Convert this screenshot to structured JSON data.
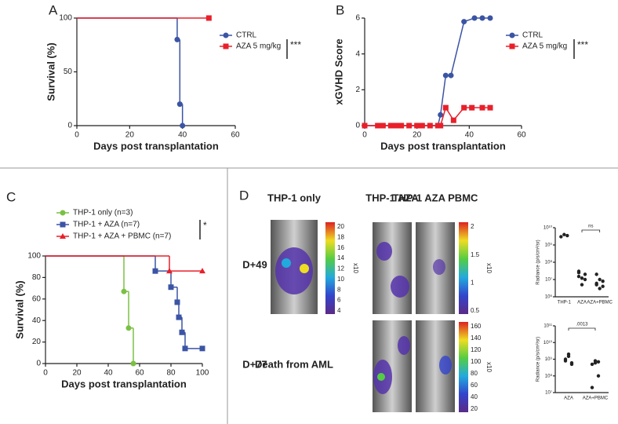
{
  "chart_data": [
    {
      "type": "step",
      "title": "A",
      "xlabel": "Days post transplantation",
      "ylabel": "Survival (%)",
      "annotation": "***",
      "xlim": [
        0,
        60
      ],
      "xticks": [
        0,
        20,
        40,
        60
      ],
      "ylim": [
        0,
        100
      ],
      "yticks": [
        0,
        50,
        100
      ],
      "legend": "right",
      "series": [
        {
          "name": "CTRL",
          "color": "#3b54a4",
          "marker": "circle",
          "x": [
            0,
            38,
            39,
            40
          ],
          "values": [
            100,
            80,
            20,
            0
          ]
        },
        {
          "name": "AZA 5 mg/kg",
          "color": "#e8202a",
          "marker": "square",
          "x": [
            0,
            50
          ],
          "values": [
            100,
            100
          ]
        }
      ]
    },
    {
      "type": "line",
      "title": "B",
      "xlabel": "Days post transplantation",
      "ylabel": "xGVHD Score",
      "annotation": "***",
      "xlim": [
        0,
        60
      ],
      "xticks": [
        0,
        20,
        40,
        60
      ],
      "ylim": [
        0,
        6
      ],
      "yticks": [
        0,
        2,
        4,
        6
      ],
      "legend": "right",
      "series": [
        {
          "name": "CTRL",
          "color": "#3b54a4",
          "marker": "circle",
          "x": [
            0,
            5,
            7,
            10,
            12,
            14,
            17,
            20,
            22,
            25,
            28,
            29,
            31,
            33,
            38,
            42,
            45,
            48
          ],
          "values": [
            0,
            0,
            0,
            0,
            0,
            0,
            0,
            0,
            0,
            0,
            0,
            0.6,
            2.8,
            2.8,
            5.8,
            6,
            6,
            6
          ]
        },
        {
          "name": "AZA 5 mg/kg",
          "color": "#e8202a",
          "marker": "square",
          "x": [
            0,
            5,
            7,
            10,
            12,
            14,
            17,
            20,
            22,
            25,
            28,
            29,
            31,
            34,
            38,
            41,
            45,
            48
          ],
          "values": [
            0,
            0,
            0,
            0,
            0,
            0,
            0,
            0,
            0,
            0,
            0,
            0,
            1,
            0.3,
            1,
            1,
            1,
            1
          ]
        }
      ]
    },
    {
      "type": "step",
      "title": "C",
      "xlabel": "Days post transplantation",
      "ylabel": "Survival (%)",
      "annotation": "*",
      "xlim": [
        0,
        100
      ],
      "xticks": [
        0,
        20,
        40,
        60,
        80,
        100
      ],
      "ylim": [
        0,
        100
      ],
      "yticks": [
        0,
        20,
        40,
        60,
        80,
        100
      ],
      "legend": "top",
      "series": [
        {
          "name": "THP-1 only (n=3)",
          "color": "#7ac143",
          "marker": "circle",
          "x": [
            0,
            50,
            53,
            56
          ],
          "values": [
            100,
            67,
            33,
            0
          ]
        },
        {
          "name": "THP-1 + AZA (n=7)",
          "color": "#3b54a4",
          "marker": "square",
          "x": [
            0,
            70,
            80,
            84,
            85,
            87,
            89,
            100
          ],
          "values": [
            100,
            86,
            71,
            57,
            43,
            29,
            14,
            14
          ]
        },
        {
          "name": "THP-1 + AZA + PBMC (n=7)",
          "color": "#e8202a",
          "marker": "triangle",
          "x": [
            0,
            79,
            100
          ],
          "values": [
            100,
            86,
            86
          ]
        }
      ]
    },
    {
      "type": "strip",
      "ylabel": "Radiance (p/s/cm²/sr)",
      "annotation": "ns",
      "log": true,
      "color": "#222222",
      "categories": [
        "THP-1",
        "AZA",
        "AZA+PBMC"
      ],
      "values": [
        [
          3000000000,
          4000000000,
          3500000000
        ],
        [
          25000000,
          12000000,
          20000000,
          30000000,
          5000000,
          10000000,
          15000000
        ],
        [
          5000000,
          3000000,
          8000000,
          20000000,
          10000000,
          4000000,
          6000000
        ]
      ],
      "ylim": [
        1000000,
        10000000000
      ],
      "yticks": [
        {
          "value": 1000000,
          "label": "10⁶"
        },
        {
          "value": 10000000,
          "label": "10⁷"
        },
        {
          "value": 100000000,
          "label": "10⁸"
        },
        {
          "value": 1000000000,
          "label": "10⁹"
        },
        {
          "value": 10000000000,
          "label": "10¹⁰"
        }
      ]
    },
    {
      "type": "strip",
      "ylabel": "Radiance (p/s/cm²/sr)",
      "annotation": ".0013",
      "log": true,
      "color": "#222222",
      "categories": [
        "AZA",
        "AZA+PBMC"
      ],
      "values": [
        [
          1000000000,
          2000000000,
          500000000,
          800000000,
          1500000000,
          600000000
        ],
        [
          500000000,
          800000000,
          100000000,
          20000000,
          600000000,
          700000000
        ]
      ],
      "ylim": [
        10000000,
        100000000000
      ],
      "yticks": [
        {
          "value": 10000000,
          "label": "10⁷"
        },
        {
          "value": 100000000,
          "label": "10⁸"
        },
        {
          "value": 1000000000,
          "label": "10⁹"
        },
        {
          "value": 10000000000,
          "label": "10¹⁰"
        },
        {
          "value": 100000000000,
          "label": "10¹¹"
        }
      ]
    }
  ],
  "panel_d": {
    "label": "D",
    "columns": [
      "THP-1 only",
      "THP-1 AZA",
      "THP-1 AZA PBMC"
    ],
    "rows": [
      "D+49",
      "D+77"
    ],
    "death_note": "Death from AML",
    "colorbars": [
      {
        "unit": "x10",
        "ticks": [
          4,
          6,
          8,
          10,
          12,
          14,
          16,
          18,
          20
        ]
      },
      {
        "unit": "x10",
        "ticks": [
          0.5,
          1.0,
          1.5,
          2.0
        ]
      },
      {
        "unit": "x10",
        "ticks": [
          20,
          40,
          60,
          80,
          100,
          120,
          140,
          160
        ]
      }
    ]
  }
}
